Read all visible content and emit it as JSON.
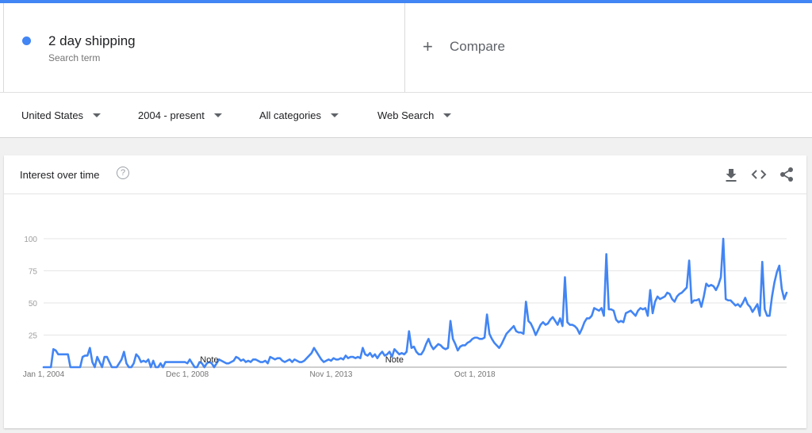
{
  "search_term": {
    "name": "2 day shipping",
    "type": "Search term",
    "color": "#4285f4"
  },
  "compare": {
    "label": "Compare"
  },
  "filters": {
    "region": "United States",
    "time": "2004 - present",
    "category": "All categories",
    "property": "Web Search"
  },
  "card": {
    "title": "Interest over time",
    "icons": [
      "help-icon",
      "download-icon",
      "embed-icon",
      "share-icon"
    ]
  },
  "chart_data": {
    "type": "line",
    "title": "Interest over time",
    "x_start": "2004-01",
    "x_frequency": "monthly",
    "x_tick_labels": [
      "Jan 1, 2004",
      "Dec 1, 2008",
      "Nov 1, 2013",
      "Oct 1, 2018"
    ],
    "ylim": [
      0,
      100
    ],
    "y_ticks": [
      25,
      50,
      75,
      100
    ],
    "grid": true,
    "annotations": [
      {
        "label": "Note",
        "at": "2009-09"
      },
      {
        "label": "Note",
        "at": "2016-01"
      }
    ],
    "series": [
      {
        "color": "#4285f4",
        "values": [
          0,
          0,
          0,
          0,
          14,
          13,
          10,
          10,
          10,
          10,
          10,
          0,
          0,
          0,
          0,
          0,
          8,
          9,
          9,
          15,
          4,
          0,
          8,
          4,
          0,
          8,
          8,
          4,
          0,
          0,
          0,
          3,
          6,
          12,
          3,
          0,
          0,
          3,
          10,
          8,
          4,
          5,
          4,
          6,
          0,
          5,
          0,
          0,
          3,
          0,
          4,
          4,
          4,
          4,
          4,
          4,
          4,
          4,
          4,
          3,
          6,
          3,
          0,
          0,
          4,
          3,
          0,
          3,
          4,
          3,
          0,
          3,
          6,
          5,
          4,
          3,
          3,
          4,
          5,
          8,
          7,
          5,
          6,
          4,
          5,
          4,
          6,
          6,
          5,
          4,
          4,
          5,
          3,
          8,
          7,
          6,
          7,
          7,
          5,
          4,
          5,
          6,
          4,
          6,
          5,
          4,
          4,
          5,
          7,
          9,
          11,
          15,
          12,
          9,
          6,
          4,
          5,
          6,
          5,
          7,
          6,
          6,
          7,
          6,
          9,
          7,
          8,
          8,
          7,
          8,
          7,
          15,
          10,
          9,
          11,
          8,
          10,
          7,
          10,
          12,
          9,
          10,
          12,
          8,
          14,
          12,
          10,
          11,
          10,
          12,
          28,
          15,
          16,
          12,
          10,
          10,
          13,
          18,
          22,
          17,
          14,
          16,
          18,
          17,
          15,
          14,
          15,
          36,
          22,
          18,
          13,
          16,
          17,
          17,
          19,
          20,
          22,
          23,
          23,
          22,
          22,
          23,
          41,
          26,
          22,
          19,
          17,
          15,
          18,
          22,
          26,
          28,
          30,
          32,
          28,
          27,
          27,
          26,
          51,
          36,
          34,
          30,
          25,
          29,
          33,
          35,
          33,
          34,
          37,
          39,
          36,
          33,
          38,
          32,
          70,
          35,
          33,
          33,
          32,
          30,
          26,
          30,
          35,
          38,
          38,
          40,
          46,
          45,
          44,
          46,
          40,
          88,
          45,
          45,
          44,
          37,
          35,
          36,
          35,
          42,
          43,
          44,
          42,
          40,
          44,
          46,
          45,
          46,
          40,
          60,
          42,
          51,
          55,
          53,
          54,
          55,
          58,
          57,
          53,
          51,
          55,
          57,
          58,
          60,
          62,
          83,
          50,
          52,
          52,
          53,
          47,
          55,
          65,
          63,
          64,
          63,
          60,
          64,
          70,
          100,
          53,
          52,
          52,
          50,
          48,
          49,
          47,
          50,
          54,
          49,
          47,
          43,
          46,
          49,
          40,
          82,
          45,
          40,
          40,
          55,
          66,
          74,
          79,
          61,
          53,
          58
        ]
      }
    ]
  }
}
